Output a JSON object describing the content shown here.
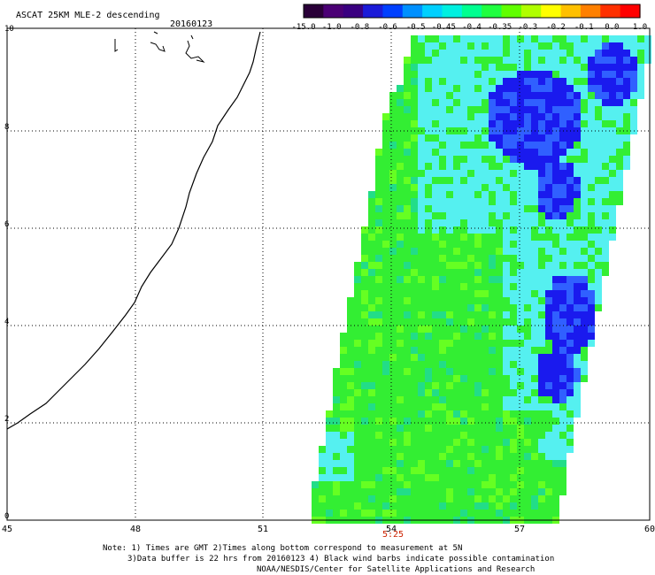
{
  "title": "ASCAT 25KM MLE-2 descending",
  "date": "20160123",
  "colorbar": {
    "colors": [
      "#2a0038",
      "#4b0075",
      "#3a0080",
      "#1b1bd8",
      "#0040ff",
      "#0090ff",
      "#00d0ff",
      "#00f0e0",
      "#00ff90",
      "#20ff40",
      "#60ff00",
      "#b0ff00",
      "#ffff00",
      "#ffc000",
      "#ff8000",
      "#ff3000",
      "#ff0000"
    ],
    "labels": [
      "-15.0",
      "-1.0",
      "-0.8",
      "-0.6",
      "-0.5",
      "-0.45",
      "-0.4",
      "-0.35",
      "-0.3",
      "-0.2",
      "-0.1",
      "0.0",
      "1.0"
    ]
  },
  "x_axis": {
    "ticks": [
      "45",
      "48",
      "51",
      "54",
      "57",
      "60"
    ]
  },
  "y_axis": {
    "ticks": [
      "0",
      "2",
      "4",
      "6",
      "8",
      "10"
    ]
  },
  "time_label": "5:25",
  "time_label_color": "#cc2200",
  "colors": {
    "swath_base": "#33ee33",
    "cyan": "#55f0f0",
    "blue": "#1a1aee",
    "coastline": "#000000"
  },
  "notes": {
    "line1": "Note: 1) Times are GMT 2)Times along bottom correspond to measurement at 5N",
    "line2": "3)Data buffer is 22 hrs from 20160123 4) Black wind barbs indicate possible contamination",
    "line3": "NOAA/NESDIS/Center for Satellite Applications and Research"
  }
}
